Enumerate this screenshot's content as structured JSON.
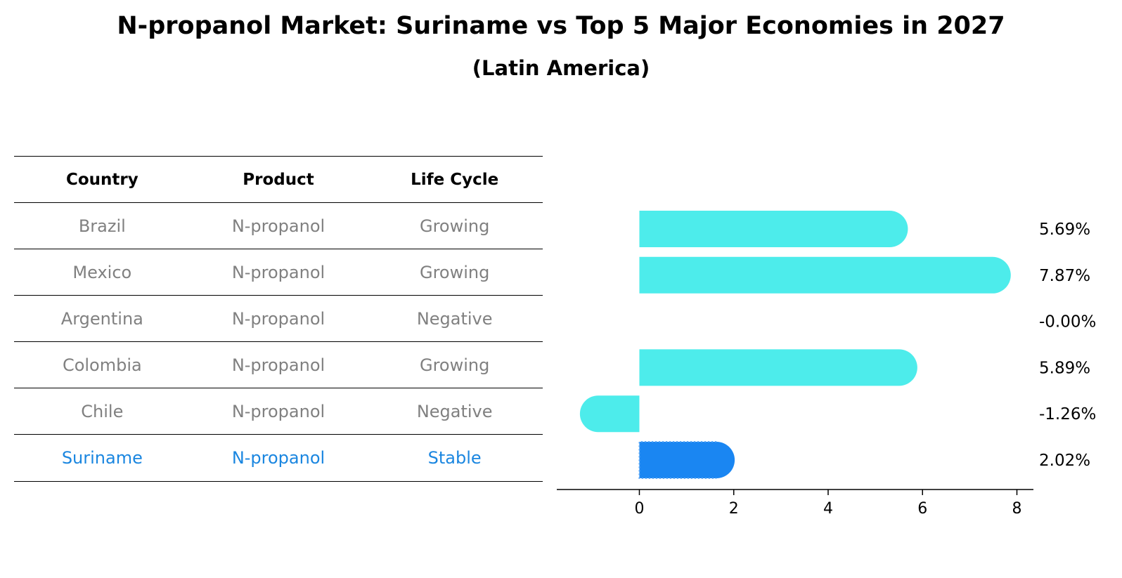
{
  "title": "N-propanol Market: Suriname vs Top 5 Major Economies in 2027",
  "subtitle": "(Latin America)",
  "table": {
    "headers": [
      "Country",
      "Product",
      "Life Cycle"
    ],
    "rows": [
      {
        "country": "Brazil",
        "product": "N-propanol",
        "life_cycle": "Growing"
      },
      {
        "country": "Mexico",
        "product": "N-propanol",
        "life_cycle": "Growing"
      },
      {
        "country": "Argentina",
        "product": "N-propanol",
        "life_cycle": "Negative"
      },
      {
        "country": "Colombia",
        "product": "N-propanol",
        "life_cycle": "Growing"
      },
      {
        "country": "Chile",
        "product": "N-propanol",
        "life_cycle": "Negative"
      },
      {
        "country": "Suriname",
        "product": "N-propanol",
        "life_cycle": "Stable"
      }
    ]
  },
  "chart_data": {
    "type": "bar",
    "orientation": "horizontal",
    "categories": [
      "Brazil",
      "Mexico",
      "Argentina",
      "Colombia",
      "Chile",
      "Suriname"
    ],
    "values": [
      5.69,
      7.87,
      -0.0,
      5.89,
      -1.26,
      2.02
    ],
    "labels": [
      "5.69%",
      "7.87%",
      "-0.00%",
      "5.89%",
      "-1.26%",
      "2.02%"
    ],
    "xticks": [
      0,
      2,
      4,
      6,
      8
    ],
    "xlim": [
      -1.75,
      8.35
    ],
    "grid": false,
    "highlight": "Suriname",
    "colors": {
      "default": "#4deceb",
      "highlight": "#1a86f2",
      "highlight_text": "#1a86e0"
    }
  }
}
